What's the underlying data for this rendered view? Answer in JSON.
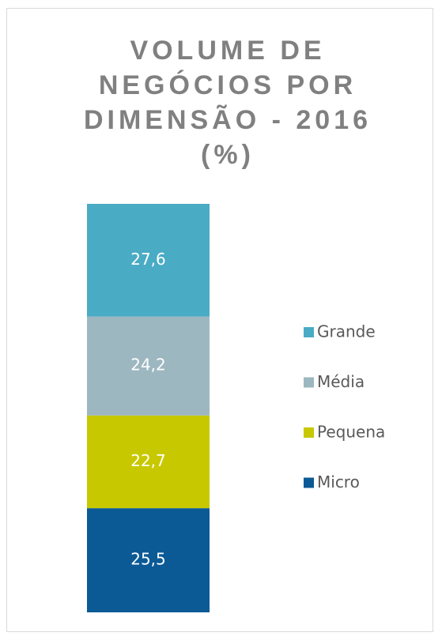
{
  "chart_data": {
    "type": "stacked_bar",
    "title": "VOLUME DE NEGÓCIOS POR DIMENSÃO - 2016 (%)",
    "categories": [
      null
    ],
    "series": [
      {
        "name": "Micro",
        "color": "#0b5a96",
        "values": [
          25.5
        ],
        "value_labels": [
          "25,5"
        ]
      },
      {
        "name": "Pequena",
        "color": "#c8c800",
        "values": [
          22.7
        ],
        "value_labels": [
          "22,7"
        ]
      },
      {
        "name": "Média",
        "color": "#9db7c1",
        "values": [
          24.2
        ],
        "value_labels": [
          "24,2"
        ]
      },
      {
        "name": "Grande",
        "color": "#4aabc5",
        "values": [
          27.6
        ],
        "value_labels": [
          "27,6"
        ]
      }
    ],
    "ylim": [
      0,
      100
    ],
    "legend": "right"
  }
}
